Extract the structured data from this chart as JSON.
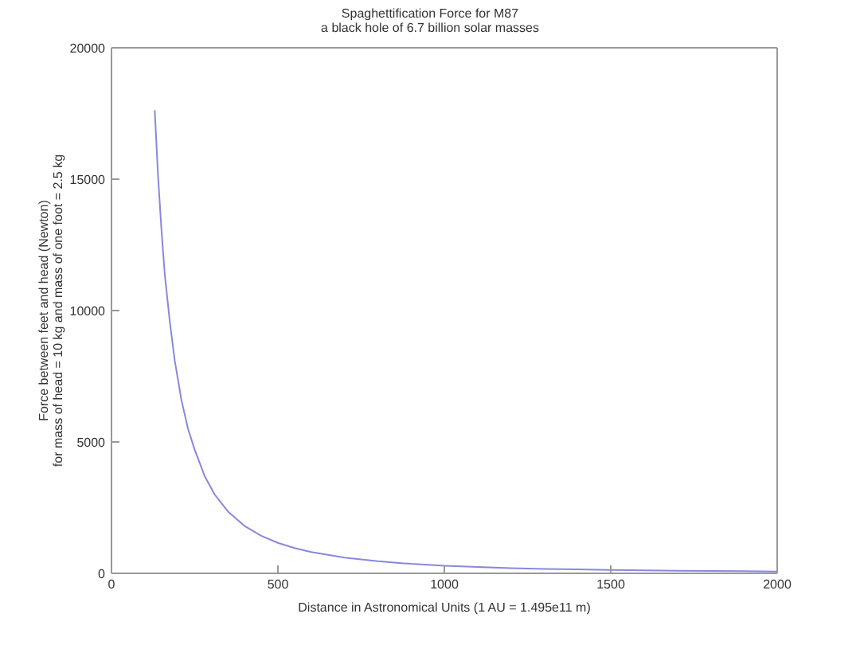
{
  "chart_data": {
    "type": "line",
    "title": "Spaghettification Force for M87",
    "subtitle": "a black hole of 6.7 billion solar masses",
    "xlabel": "Distance in Astronomical Units (1 AU = 1.495e11 m)",
    "ylabel": "Force between feet and head (Newton)\nfor mass of head = 10 kg and mass of one foot = 2.5 kg",
    "x": [
      130,
      140,
      150,
      160,
      175,
      190,
      210,
      230,
      250,
      280,
      310,
      350,
      400,
      450,
      500,
      550,
      600,
      700,
      800,
      900,
      1000,
      1100,
      1200,
      1300,
      1400,
      1500,
      1600,
      1700,
      1800,
      1900,
      2000
    ],
    "series": [
      {
        "color": "#8888dd",
        "values": [
          17600,
          15100,
          13100,
          11400,
          9600,
          8100,
          6600,
          5500,
          4700,
          3700,
          3000,
          2350,
          1800,
          1430,
          1160,
          960,
          810,
          600,
          460,
          360,
          290,
          240,
          200,
          170,
          150,
          130,
          110,
          100,
          90,
          80,
          70
        ]
      }
    ],
    "xlim": [
      0,
      2000
    ],
    "xticks": [
      0,
      500,
      1000,
      1500,
      2000
    ],
    "ylim": [
      0,
      20000
    ],
    "yticks": [
      0,
      5000,
      10000,
      15000,
      20000
    ]
  }
}
